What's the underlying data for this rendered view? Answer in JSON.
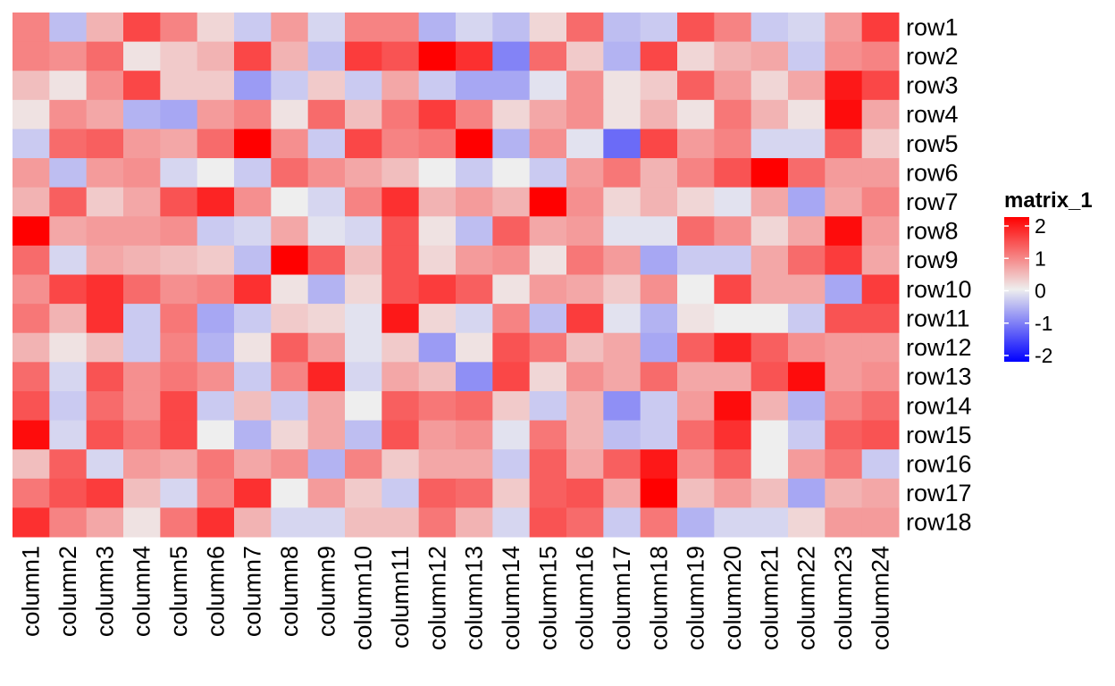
{
  "chart_data": {
    "type": "heatmap",
    "title": "",
    "xlabel": "",
    "ylabel": "",
    "rows": [
      "row1",
      "row2",
      "row3",
      "row4",
      "row5",
      "row6",
      "row7",
      "row8",
      "row9",
      "row10",
      "row11",
      "row12",
      "row13",
      "row14",
      "row15",
      "row16",
      "row17",
      "row18"
    ],
    "columns": [
      "column1",
      "column2",
      "column3",
      "column4",
      "column5",
      "column6",
      "column7",
      "column8",
      "column9",
      "column10",
      "column11",
      "column12",
      "column13",
      "column14",
      "column15",
      "column16",
      "column17",
      "column18",
      "column19",
      "column20",
      "column21",
      "column22",
      "column23",
      "column24"
    ],
    "values": [
      [
        0.9,
        -0.4,
        0.5,
        1.4,
        0.9,
        0.2,
        -0.3,
        0.7,
        -0.2,
        0.9,
        0.9,
        -0.5,
        -0.2,
        -0.4,
        0.2,
        1.1,
        -0.4,
        -0.3,
        1.3,
        0.9,
        -0.3,
        -0.2,
        0.7,
        1.5
      ],
      [
        0.9,
        0.8,
        1.1,
        0.1,
        0.3,
        0.5,
        1.4,
        0.5,
        -0.4,
        1.5,
        1.3,
        2.2,
        1.6,
        -0.9,
        1.1,
        0.3,
        -0.5,
        1.4,
        0.2,
        0.5,
        0.6,
        -0.3,
        0.8,
        0.9
      ],
      [
        0.4,
        0.1,
        0.8,
        1.4,
        0.3,
        0.3,
        -0.7,
        -0.3,
        0.3,
        -0.3,
        0.6,
        -0.3,
        -0.6,
        -0.6,
        -0.1,
        0.8,
        0.1,
        0.3,
        1.2,
        0.7,
        0.2,
        0.6,
        1.8,
        1.4
      ],
      [
        0.1,
        0.8,
        0.6,
        -0.5,
        -0.6,
        0.7,
        0.9,
        0.1,
        1.1,
        0.4,
        1.0,
        1.5,
        0.9,
        0.2,
        0.6,
        0.8,
        0.1,
        0.5,
        0.1,
        1.0,
        0.5,
        0.1,
        1.9,
        0.6
      ],
      [
        -0.3,
        1.1,
        1.2,
        0.7,
        0.6,
        1.1,
        2.3,
        0.8,
        -0.3,
        1.4,
        0.9,
        1.0,
        2.2,
        -0.5,
        0.8,
        -0.1,
        -1.1,
        1.4,
        0.7,
        0.9,
        -0.2,
        -0.2,
        1.2,
        0.3
      ],
      [
        0.7,
        -0.4,
        0.7,
        0.8,
        -0.2,
        0.0,
        -0.3,
        1.1,
        0.8,
        0.6,
        0.4,
        0.0,
        -0.3,
        0.0,
        -0.3,
        0.7,
        1.0,
        0.5,
        0.9,
        1.3,
        2.0,
        1.1,
        0.7,
        0.7
      ],
      [
        0.5,
        1.2,
        0.3,
        0.6,
        1.3,
        1.7,
        0.8,
        0.0,
        -0.2,
        0.9,
        1.6,
        0.5,
        0.7,
        0.5,
        2.4,
        0.8,
        0.2,
        0.5,
        0.2,
        -0.1,
        0.6,
        -0.6,
        0.6,
        0.9
      ],
      [
        2.4,
        0.6,
        0.7,
        0.7,
        0.8,
        -0.3,
        -0.2,
        0.6,
        -0.1,
        -0.2,
        1.3,
        0.1,
        -0.4,
        1.2,
        0.6,
        0.7,
        -0.1,
        -0.1,
        1.1,
        0.8,
        0.2,
        0.6,
        1.9,
        0.7
      ],
      [
        1.1,
        -0.2,
        0.6,
        0.5,
        0.4,
        0.3,
        -0.4,
        2.0,
        1.2,
        0.4,
        1.3,
        0.2,
        0.7,
        0.8,
        0.1,
        1.0,
        0.7,
        -0.6,
        -0.3,
        -0.3,
        0.6,
        1.1,
        1.5,
        0.6
      ],
      [
        0.8,
        1.4,
        1.6,
        1.1,
        0.8,
        0.9,
        1.6,
        0.1,
        -0.5,
        0.2,
        1.3,
        1.5,
        1.2,
        0.1,
        0.7,
        0.6,
        0.3,
        0.8,
        0.0,
        1.4,
        0.6,
        0.6,
        -0.6,
        1.5
      ],
      [
        1.0,
        0.5,
        1.6,
        -0.3,
        1.0,
        -0.6,
        -0.3,
        0.3,
        0.2,
        -0.1,
        1.8,
        0.2,
        -0.2,
        0.9,
        -0.4,
        1.5,
        -0.1,
        -0.5,
        0.1,
        0.0,
        0.0,
        -0.3,
        1.3,
        1.3
      ],
      [
        0.5,
        0.1,
        0.4,
        -0.3,
        0.9,
        -0.5,
        0.1,
        1.2,
        0.7,
        -0.1,
        0.3,
        -0.7,
        0.1,
        1.3,
        1.0,
        0.4,
        0.6,
        -0.6,
        1.2,
        1.7,
        1.2,
        0.8,
        0.7,
        0.7
      ],
      [
        1.1,
        -0.2,
        1.3,
        0.8,
        1.0,
        0.8,
        -0.3,
        0.9,
        1.7,
        -0.2,
        0.6,
        0.4,
        -0.8,
        1.4,
        0.2,
        0.8,
        0.6,
        1.1,
        0.6,
        0.6,
        1.3,
        1.9,
        0.7,
        0.8
      ],
      [
        1.3,
        -0.3,
        1.1,
        0.8,
        1.4,
        -0.3,
        0.4,
        -0.3,
        0.6,
        0.0,
        1.2,
        1.0,
        1.1,
        0.3,
        -0.3,
        0.5,
        -0.8,
        -0.3,
        0.7,
        1.9,
        0.5,
        -0.5,
        0.9,
        1.1
      ],
      [
        1.9,
        -0.2,
        1.3,
        1.0,
        1.4,
        0.0,
        -0.5,
        0.2,
        0.6,
        -0.4,
        1.3,
        0.7,
        0.8,
        -0.1,
        1.0,
        0.5,
        -0.4,
        -0.3,
        1.1,
        1.6,
        0.0,
        -0.3,
        1.2,
        1.3
      ],
      [
        0.4,
        1.2,
        -0.2,
        0.7,
        0.6,
        1.0,
        0.6,
        0.8,
        -0.5,
        0.9,
        0.3,
        0.6,
        0.6,
        -0.3,
        1.2,
        0.6,
        1.2,
        1.8,
        0.8,
        1.2,
        0.0,
        0.7,
        1.0,
        -0.3
      ],
      [
        1.0,
        1.3,
        1.5,
        0.4,
        -0.2,
        0.9,
        1.6,
        0.0,
        0.7,
        0.3,
        -0.3,
        1.2,
        1.1,
        0.3,
        1.2,
        1.3,
        0.6,
        2.4,
        0.4,
        0.7,
        0.4,
        -0.6,
        0.5,
        0.6
      ],
      [
        1.6,
        0.9,
        0.6,
        0.1,
        1.0,
        1.6,
        0.5,
        -0.2,
        -0.2,
        0.4,
        0.4,
        1.0,
        0.5,
        -0.2,
        1.3,
        1.1,
        -0.3,
        1.0,
        -0.5,
        -0.2,
        -0.2,
        0.2,
        0.7,
        0.7
      ]
    ],
    "legend": {
      "title": "matrix_1",
      "ticks": [
        2,
        1,
        0,
        -1,
        -2
      ],
      "tick_labels": [
        "2",
        "1",
        "0",
        "-1",
        "-2"
      ],
      "range": [
        -2,
        2
      ],
      "placement": "right"
    },
    "color_scale": {
      "low": "#0000ff",
      "mid": "#eeeeee",
      "high": "#ff0000"
    },
    "grid": false
  }
}
